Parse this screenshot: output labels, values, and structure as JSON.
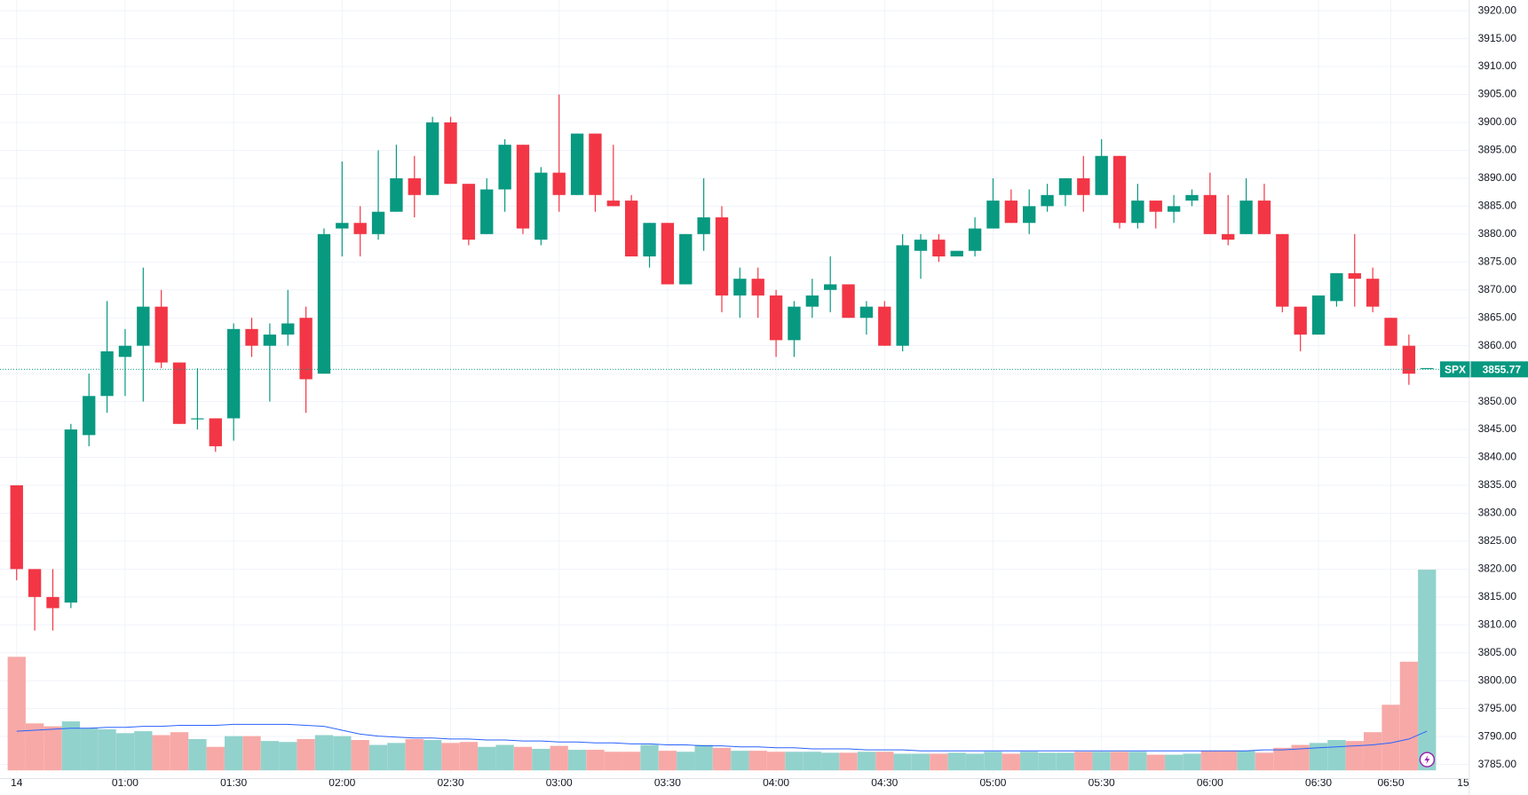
{
  "chart_data": {
    "type": "candlestick",
    "categories": [
      "14",
      null,
      null,
      null,
      null,
      null,
      "01:00",
      null,
      null,
      null,
      null,
      null,
      "01:30",
      null,
      null,
      null,
      null,
      null,
      "02:00",
      null,
      null,
      null,
      null,
      null,
      "02:30",
      null,
      null,
      null,
      null,
      null,
      "03:00",
      null,
      null,
      null,
      null,
      null,
      "03:30",
      null,
      null,
      null,
      null,
      null,
      "04:00",
      null,
      null,
      null,
      null,
      null,
      "04:30",
      null,
      null,
      null,
      null,
      null,
      "05:00",
      null,
      null,
      null,
      null,
      null,
      "05:30",
      null,
      null,
      null,
      null,
      null,
      "06:00",
      null,
      null,
      null,
      null,
      null,
      "06:30",
      null,
      null,
      null,
      "06:50",
      null,
      null
    ],
    "x_end_label": "15",
    "open": [
      3835,
      3820,
      3815,
      3814,
      3844,
      3851,
      3858,
      3860,
      3867,
      3857,
      3847,
      3847,
      3847,
      3863,
      3860,
      3862,
      3865,
      3855,
      3881,
      3882,
      3880,
      3884,
      3890,
      3887,
      3900,
      3889,
      3880,
      3888,
      3896,
      3879,
      3891,
      3887,
      3898,
      3886,
      3886,
      3876,
      3882,
      3871,
      3880,
      3883,
      3869,
      3872,
      3869,
      3861,
      3867,
      3870,
      3871,
      3865,
      3867,
      3860,
      3877,
      3879,
      3876,
      3877,
      3881,
      3886,
      3882,
      3885,
      3887,
      3890,
      3887,
      3894,
      3882,
      3886,
      3884,
      3886,
      3887,
      3880,
      3880,
      3886,
      3880,
      3867,
      3862,
      3868,
      3873,
      3872,
      3865,
      3860,
      3856
    ],
    "high": [
      3835,
      3820,
      3820,
      3846,
      3855,
      3868,
      3863,
      3874,
      3870,
      3857,
      3856,
      3847,
      3864,
      3865,
      3864,
      3870,
      3867,
      3881,
      3893,
      3885,
      3895,
      3896,
      3894,
      3901,
      3901,
      3889,
      3890,
      3897,
      3896,
      3892,
      3905,
      3898,
      3898,
      3896,
      3887,
      3882,
      3882,
      3880,
      3890,
      3885,
      3874,
      3874,
      3870,
      3868,
      3872,
      3876,
      3871,
      3868,
      3868,
      3880,
      3880,
      3880,
      3877,
      3883,
      3890,
      3888,
      3888,
      3889,
      3890,
      3894,
      3897,
      3894,
      3889,
      3886,
      3887,
      3888,
      3891,
      3887,
      3890,
      3889,
      3880,
      3867,
      3869,
      3873,
      3880,
      3874,
      3865,
      3862,
      3856
    ],
    "low": [
      3818,
      3809,
      3809,
      3813,
      3842,
      3848,
      3851,
      3850,
      3856,
      3846,
      3845,
      3841,
      3843,
      3858,
      3850,
      3860,
      3848,
      3855,
      3876,
      3876,
      3879,
      3884,
      3883,
      3887,
      3889,
      3878,
      3880,
      3884,
      3880,
      3878,
      3884,
      3887,
      3884,
      3885,
      3876,
      3874,
      3871,
      3871,
      3877,
      3866,
      3865,
      3865,
      3858,
      3858,
      3865,
      3866,
      3865,
      3862,
      3860,
      3859,
      3872,
      3875,
      3876,
      3876,
      3881,
      3882,
      3880,
      3884,
      3885,
      3884,
      3887,
      3881,
      3881,
      3881,
      3882,
      3885,
      3880,
      3878,
      3880,
      3880,
      3866,
      3859,
      3862,
      3867,
      3867,
      3866,
      3860,
      3853,
      3856
    ],
    "close": [
      3820,
      3815,
      3813,
      3845,
      3851,
      3859,
      3860,
      3867,
      3857,
      3846,
      3847,
      3842,
      3863,
      3860,
      3862,
      3864,
      3854,
      3880,
      3882,
      3880,
      3884,
      3890,
      3887,
      3900,
      3889,
      3879,
      3888,
      3896,
      3881,
      3891,
      3887,
      3898,
      3887,
      3885,
      3876,
      3882,
      3871,
      3880,
      3883,
      3869,
      3872,
      3869,
      3861,
      3867,
      3869,
      3871,
      3865,
      3867,
      3860,
      3878,
      3879,
      3876,
      3877,
      3881,
      3886,
      3882,
      3885,
      3887,
      3890,
      3887,
      3894,
      3882,
      3886,
      3884,
      3885,
      3887,
      3880,
      3879,
      3886,
      3880,
      3867,
      3862,
      3869,
      3873,
      3872,
      3867,
      3860,
      3855,
      3856
    ],
    "volume": [
      116,
      48,
      45,
      50,
      43,
      42,
      38,
      40,
      36,
      39,
      32,
      24,
      35,
      35,
      30,
      29,
      32,
      36,
      35,
      31,
      26,
      28,
      32,
      31,
      28,
      29,
      24,
      26,
      24,
      22,
      25,
      21,
      21,
      19,
      19,
      26,
      20,
      19,
      26,
      23,
      20,
      20,
      19,
      19,
      19,
      18,
      18,
      19,
      19,
      17,
      17,
      17,
      18,
      17,
      19,
      17,
      19,
      18,
      18,
      19,
      19,
      19,
      19,
      16,
      16,
      17,
      20,
      20,
      20,
      18,
      23,
      26,
      28,
      31,
      30,
      39,
      67,
      111,
      205
    ],
    "volume_ma": [
      40,
      41,
      42,
      43,
      43,
      44,
      44,
      45,
      45,
      46,
      46,
      46,
      47,
      47,
      47,
      47,
      46,
      45,
      41,
      37,
      35,
      34,
      33,
      33,
      32,
      32,
      31,
      31,
      30,
      30,
      29,
      29,
      28,
      28,
      27,
      27,
      26,
      26,
      25,
      25,
      24,
      24,
      23,
      23,
      22,
      22,
      22,
      21,
      21,
      21,
      20,
      20,
      20,
      20,
      20,
      20,
      20,
      20,
      20,
      20,
      20,
      20,
      20,
      20,
      20,
      20,
      20,
      20,
      20,
      21,
      21,
      22,
      23,
      24,
      25,
      26,
      28,
      32,
      40
    ],
    "up_color": "#089981",
    "down_color": "#f23645",
    "up_volume_color": "#92d2cc",
    "down_volume_color": "#f7a9a7",
    "volume_ma_color": "#2962ff",
    "ylim": [
      3785,
      3920
    ],
    "yticks": [
      {
        "value": 3785,
        "label": "3785.00"
      },
      {
        "value": 3790,
        "label": "3790.00"
      },
      {
        "value": 3795,
        "label": "3795.00"
      },
      {
        "value": 3800,
        "label": "3800.00"
      },
      {
        "value": 3805,
        "label": "3805.00"
      },
      {
        "value": 3810,
        "label": "3810.00"
      },
      {
        "value": 3815,
        "label": "3815.00"
      },
      {
        "value": 3820,
        "label": "3820.00"
      },
      {
        "value": 3825,
        "label": "3825.00"
      },
      {
        "value": 3830,
        "label": "3830.00"
      },
      {
        "value": 3835,
        "label": "3835.00"
      },
      {
        "value": 3840,
        "label": "3840.00"
      },
      {
        "value": 3845,
        "label": "3845.00"
      },
      {
        "value": 3850,
        "label": "3850.00"
      },
      {
        "value": 3855,
        "label": "3855.00"
      },
      {
        "value": 3860,
        "label": "3860.00"
      },
      {
        "value": 3865,
        "label": "3865.00"
      },
      {
        "value": 3870,
        "label": "3870.00"
      },
      {
        "value": 3875,
        "label": "3875.00"
      },
      {
        "value": 3880,
        "label": "3880.00"
      },
      {
        "value": 3885,
        "label": "3885.00"
      },
      {
        "value": 3890,
        "label": "3890.00"
      },
      {
        "value": 3895,
        "label": "3895.00"
      },
      {
        "value": 3900,
        "label": "3900.00"
      },
      {
        "value": 3905,
        "label": "3905.00"
      },
      {
        "value": 3910,
        "label": "3910.00"
      },
      {
        "value": 3915,
        "label": "3915.00"
      },
      {
        "value": 3920,
        "label": "3920.00"
      }
    ],
    "grid": true,
    "last_price": {
      "label": "SPX",
      "value": 3855.77
    }
  }
}
